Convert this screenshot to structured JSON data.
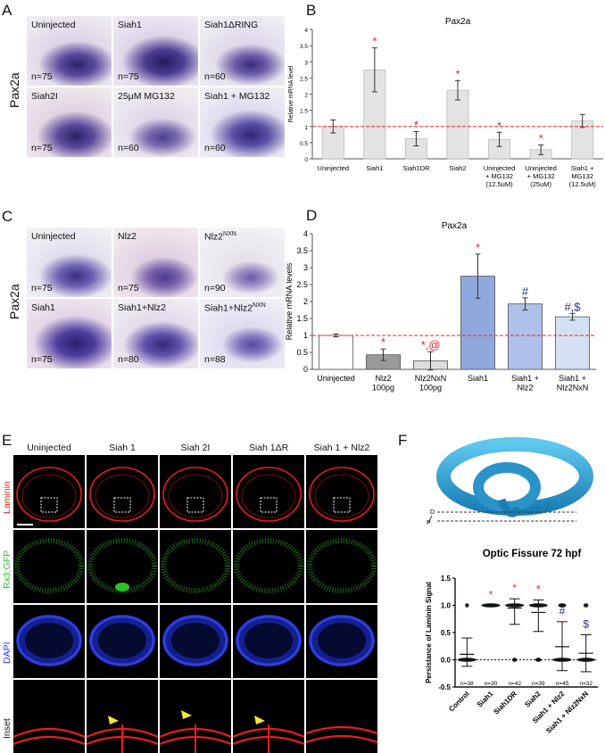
{
  "panelA": {
    "letter": "A",
    "rowlabel": "Pax2a",
    "tiles": [
      {
        "label": "Uninjected",
        "n": "n=75"
      },
      {
        "label": "Siah1",
        "n": "n=75"
      },
      {
        "label": "Siah1ΔRING",
        "n": "n=60"
      },
      {
        "label": "Siah2I",
        "n": "n=75"
      },
      {
        "label": "25μM MG132",
        "n": "n=60"
      },
      {
        "label": "Siah1 + MG132",
        "n": "n=60"
      }
    ]
  },
  "panelC": {
    "letter": "C",
    "rowlabel": "Pax2a",
    "tiles": [
      {
        "label": "Uninjected",
        "sup": "",
        "n": "n=75"
      },
      {
        "label": "Nlz2",
        "sup": "",
        "n": "n=75"
      },
      {
        "label": "Nlz2",
        "sup": "NXN",
        "n": "n=90"
      },
      {
        "label": "Siah1",
        "sup": "",
        "n": "n=75"
      },
      {
        "label": "Siah1+Nlz2",
        "sup": "",
        "n": "n=80"
      },
      {
        "label": "Siah1+Nlz2",
        "sup": "NXN",
        "n": "n=88"
      }
    ]
  },
  "panelE": {
    "letter": "E",
    "columns": [
      "Uninjected",
      "Siah 1",
      "Siah 2I",
      "Siah 1ΔR",
      "Siah 1 + Nlz2"
    ],
    "rows": [
      "Laminin",
      "Rx3:GFP",
      "DAPI",
      "Inset"
    ]
  },
  "panelF": {
    "letter": "F",
    "diagram_labels": {
      "d": "D",
      "p": "P"
    }
  },
  "chart_data": [
    {
      "id": "B",
      "letter": "B",
      "type": "bar",
      "title": "Pax2a",
      "ylabel": "Relative mRNA level",
      "ylim": [
        0,
        4
      ],
      "yticks": [
        "0",
        "0.5",
        "1",
        "1.5",
        "2",
        "2.5",
        "3",
        "3.5",
        "4"
      ],
      "reference_line": 1,
      "categories": [
        {
          "lines": [
            "Uninjected"
          ]
        },
        {
          "lines": [
            "Siah1"
          ]
        },
        {
          "lines": [
            "Siah1DR"
          ]
        },
        {
          "lines": [
            "Siah2"
          ]
        },
        {
          "lines": [
            "Uninjected",
            "+ MG132",
            "(12.5uM)"
          ]
        },
        {
          "lines": [
            "Uninjected",
            "+ MG132",
            "(25uM)"
          ]
        },
        {
          "lines": [
            "Siah1 +",
            "MG132",
            "(12.5uM)"
          ]
        }
      ],
      "values": [
        1.0,
        2.75,
        0.62,
        2.12,
        0.6,
        0.28,
        1.17
      ],
      "errors": [
        0.2,
        0.68,
        0.22,
        0.3,
        0.22,
        0.15,
        0.2
      ],
      "marks": [
        "",
        "*",
        "*",
        "*",
        "*",
        "*",
        ""
      ],
      "bar_color": "#e3e3e3",
      "mark_color": "#e8262b"
    },
    {
      "id": "D",
      "letter": "D",
      "type": "bar",
      "title": "Pax2a",
      "ylabel": "Relative mRNA levels",
      "ylim": [
        0,
        4
      ],
      "yticks": [
        "0",
        "0.5",
        "1",
        "1.5",
        "2",
        "2.5",
        "3",
        "3.5",
        "4"
      ],
      "reference_line": 1,
      "categories": [
        {
          "lines": [
            "Uninjected"
          ]
        },
        {
          "lines": [
            "Nlz2",
            "100pg"
          ]
        },
        {
          "lines": [
            "Nlz2NxN",
            "100pg"
          ]
        },
        {
          "lines": [
            "Siah1"
          ]
        },
        {
          "lines": [
            "Siah1 +",
            "Nlz2"
          ]
        },
        {
          "lines": [
            "Siah1 +",
            "Nlz2NxN"
          ]
        }
      ],
      "values": [
        1.0,
        0.43,
        0.25,
        2.75,
        1.93,
        1.55
      ],
      "errors": [
        0.04,
        0.17,
        0.27,
        0.65,
        0.18,
        0.1
      ],
      "marks": [
        "",
        "*",
        "*,@",
        "*",
        "#",
        "#,$"
      ],
      "mark_colors": [
        "",
        "#e8262b",
        "#e8262b",
        "#e8262b",
        "#2b2f8f",
        "#2b2f8f"
      ],
      "bar_colors": [
        "#ffffff",
        "#9a9a9a",
        "#dcdcdc",
        "#8fa9dd",
        "#aec1ea",
        "#d5e0f5"
      ]
    },
    {
      "id": "F",
      "letter": "F",
      "type": "scatter",
      "title": "Optic Fissure 72 hpf",
      "ylabel": "Persistance of Laminin Signal",
      "ylim": [
        -0.5,
        1.5
      ],
      "yticks": [
        "-0.5",
        "0.0",
        "0.5",
        "1.0",
        "1.5"
      ],
      "categories": [
        "Control",
        "Siah1",
        "Siah1DR",
        "Siah2",
        "Siah1 + Nlz2",
        "Siah1 + Nlz2NxN"
      ],
      "n": [
        "n=38",
        "n=30",
        "n=42",
        "n=39",
        "n=45",
        "n=32"
      ],
      "means": [
        0.1,
        1.0,
        0.95,
        0.87,
        0.24,
        0.12
      ],
      "sd_upper": [
        0.4,
        1.0,
        1.12,
        1.1,
        0.7,
        0.46
      ],
      "sd_lower": [
        -0.12,
        1.0,
        0.65,
        0.52,
        -0.2,
        -0.22
      ],
      "count_at_1": [
        2,
        30,
        38,
        33,
        10,
        4
      ],
      "count_at_0": [
        36,
        0,
        4,
        6,
        35,
        28
      ],
      "marks": [
        "",
        "*",
        "*",
        "*",
        "#",
        "$"
      ],
      "mark_colors": [
        "",
        "#e8262b",
        "#e8262b",
        "#e8262b",
        "#2b2f8f",
        "#2b2f8f"
      ]
    }
  ]
}
